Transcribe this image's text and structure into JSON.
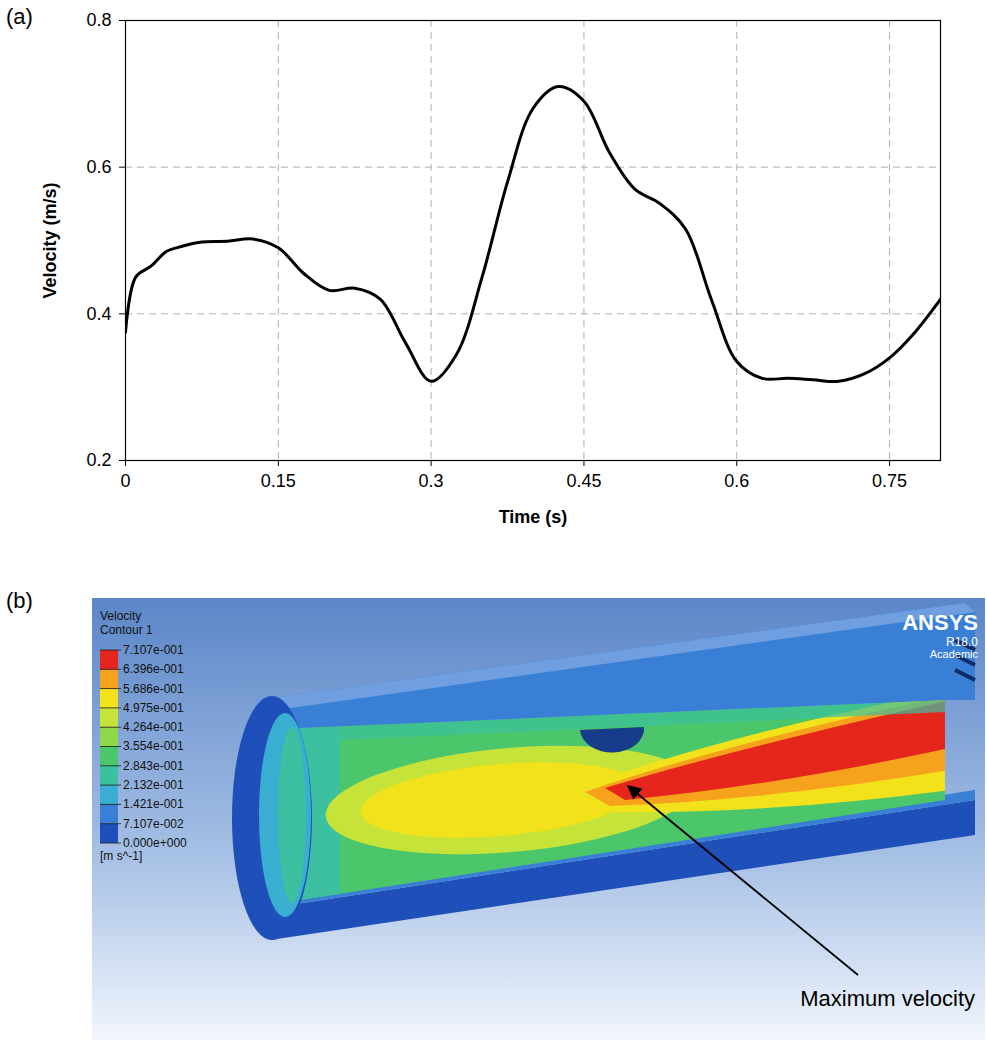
{
  "chart_data": {
    "type": "line",
    "panel_label": "(a)",
    "x_label": "Time (s)",
    "y_label": "Velocity (m/s)",
    "x": [
      0,
      0.01,
      0.025,
      0.04,
      0.05,
      0.075,
      0.1,
      0.125,
      0.15,
      0.175,
      0.2,
      0.225,
      0.25,
      0.275,
      0.3,
      0.325,
      0.35,
      0.375,
      0.4,
      0.425,
      0.45,
      0.475,
      0.5,
      0.525,
      0.55,
      0.575,
      0.6,
      0.625,
      0.65,
      0.675,
      0.7,
      0.725,
      0.75,
      0.775,
      0.8
    ],
    "series": [
      {
        "name": "Velocity",
        "color": "#000000",
        "values": [
          0.375,
          0.45,
          0.465,
          0.485,
          0.49,
          0.498,
          0.499,
          0.502,
          0.49,
          0.455,
          0.432,
          0.435,
          0.42,
          0.36,
          0.308,
          0.345,
          0.45,
          0.58,
          0.68,
          0.71,
          0.69,
          0.62,
          0.57,
          0.55,
          0.515,
          0.42,
          0.335,
          0.312,
          0.312,
          0.31,
          0.308,
          0.318,
          0.34,
          0.375,
          0.42
        ]
      }
    ],
    "xlim": [
      0,
      0.8
    ],
    "xticks": [
      0,
      0.15,
      0.3,
      0.45,
      0.6,
      0.75
    ],
    "ylim": [
      0.2,
      0.8
    ],
    "yticks": [
      0.2,
      0.4,
      0.6,
      0.8
    ],
    "grid": true
  },
  "contour_panel": {
    "panel_label": "(b)",
    "title": "Velocity",
    "subtitle": "Contour 1",
    "unit": "[m s^-1]",
    "colorbar": {
      "range": [
        0,
        0.7107
      ],
      "ticks": [
        {
          "value": 0.7107,
          "label": "7.107e-001"
        },
        {
          "value": 0.6396,
          "label": "6.396e-001"
        },
        {
          "value": 0.5686,
          "label": "5.686e-001"
        },
        {
          "value": 0.4975,
          "label": "4.975e-001"
        },
        {
          "value": 0.4264,
          "label": "4.264e-001"
        },
        {
          "value": 0.3554,
          "label": "3.554e-001"
        },
        {
          "value": 0.2843,
          "label": "2.843e-001"
        },
        {
          "value": 0.2132,
          "label": "2.132e-001"
        },
        {
          "value": 0.1421,
          "label": "1.421e-001"
        },
        {
          "value": 0.07107,
          "label": "7.107e-002"
        },
        {
          "value": 0,
          "label": "0.000e+000"
        }
      ],
      "colors": [
        "#1f4fb8",
        "#3a7fd6",
        "#3aaed0",
        "#3cc0a0",
        "#4cc66a",
        "#8fd84a",
        "#c6e33a",
        "#f2e21c",
        "#f6a21c",
        "#e6261c"
      ]
    },
    "watermark": [
      "ANSYS",
      "R18.0",
      "Academic"
    ],
    "annotation": "Maximum velocity"
  }
}
